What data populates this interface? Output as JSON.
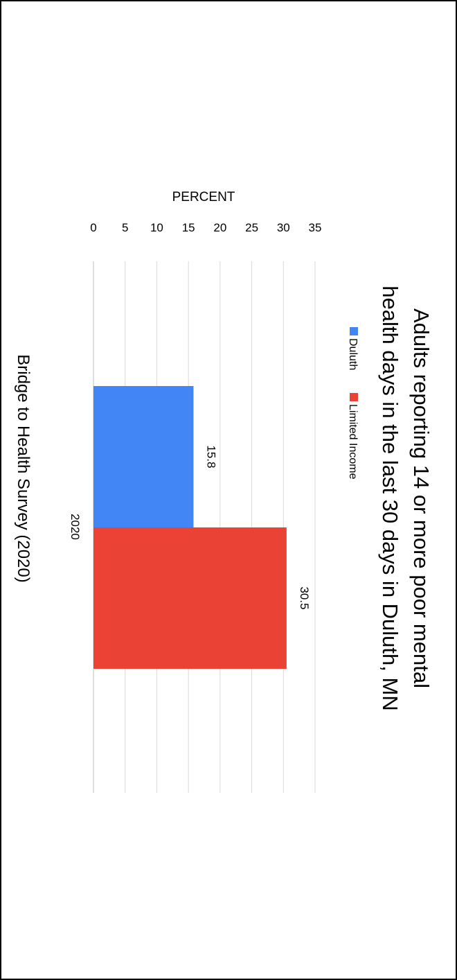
{
  "chart_data": {
    "type": "bar",
    "orientation": "horizontal",
    "title_lines": [
      "Adults reporting 14 or more poor mental",
      "health days in the last 30 days in Duluth, MN"
    ],
    "ylabel": "PERCENT",
    "xlabel": "",
    "categories": [
      "2020"
    ],
    "series": [
      {
        "name": "Duluth",
        "color": "#4285f4",
        "values": [
          15.8
        ],
        "labels": [
          "15.8"
        ]
      },
      {
        "name": "Limited Income",
        "color": "#ea4335",
        "values": [
          30.5
        ],
        "labels": [
          "30.5"
        ]
      }
    ],
    "ylim": [
      0,
      35
    ],
    "yticks": [
      0,
      5,
      10,
      15,
      20,
      25,
      30,
      35
    ],
    "grid": true,
    "legend_position": "top",
    "source": "Bridge to Health Survey (2020)"
  }
}
